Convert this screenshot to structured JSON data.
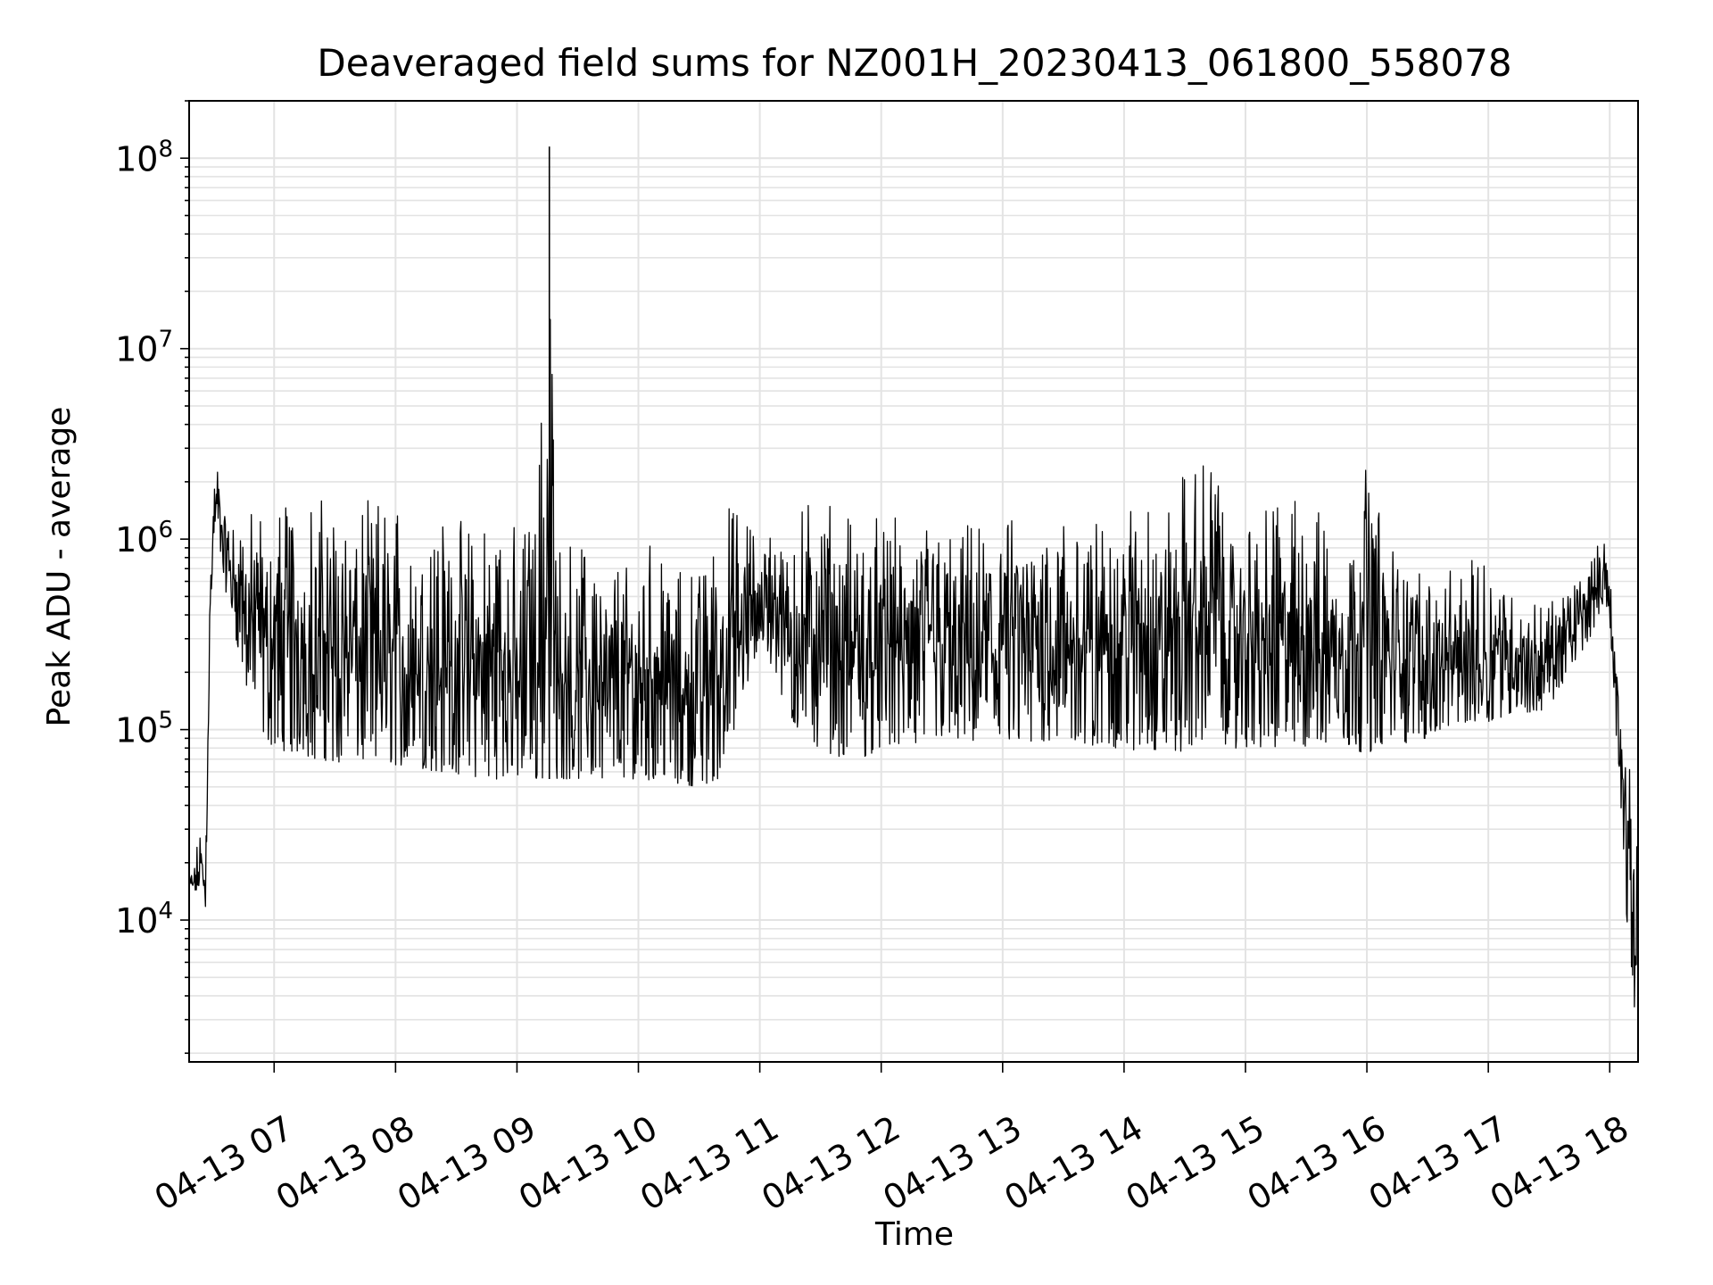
{
  "chart_data": {
    "type": "line",
    "title": "Deaveraged field sums for NZ001H_20230413_061800_558078",
    "xlabel": "Time",
    "ylabel": "Peak ADU - average",
    "yscale": "log",
    "ylim": [
      1800,
      200000000
    ],
    "xlim": [
      "2023-04-13 06:18",
      "2023-04-13 18:14"
    ],
    "grid": true,
    "line_color": "#000000",
    "grid_color": "#e3e3e3",
    "x_ticks": [
      "04-13 07",
      "04-13 08",
      "04-13 09",
      "04-13 10",
      "04-13 11",
      "04-13 12",
      "04-13 13",
      "04-13 14",
      "04-13 15",
      "04-13 16",
      "04-13 17",
      "04-13 18"
    ],
    "y_ticks": [
      "10^4",
      "10^5",
      "10^6",
      "10^7",
      "10^8"
    ],
    "series": [
      {
        "x": [
          "2023-04-13 06:18",
          "2023-04-13 06:21",
          "2023-04-13 06:24",
          "2023-04-13 06:26",
          "2023-04-13 06:28",
          "2023-04-13 06:30",
          "2023-04-13 06:32",
          "2023-04-13 06:35",
          "2023-04-13 06:40",
          "2023-04-13 06:45",
          "2023-04-13 06:50",
          "2023-04-13 06:55",
          "2023-04-13 07:00",
          "2023-04-13 07:10",
          "2023-04-13 07:20",
          "2023-04-13 07:30",
          "2023-04-13 07:40",
          "2023-04-13 07:50",
          "2023-04-13 08:00",
          "2023-04-13 08:10",
          "2023-04-13 08:20",
          "2023-04-13 08:30",
          "2023-04-13 08:40",
          "2023-04-13 08:50",
          "2023-04-13 09:00",
          "2023-04-13 09:10",
          "2023-04-13 09:16",
          "2023-04-13 09:20",
          "2023-04-13 09:30",
          "2023-04-13 09:40",
          "2023-04-13 09:50",
          "2023-04-13 10:00",
          "2023-04-13 10:10",
          "2023-04-13 10:20",
          "2023-04-13 10:30",
          "2023-04-13 10:40",
          "2023-04-13 10:50",
          "2023-04-13 11:00",
          "2023-04-13 11:10",
          "2023-04-13 11:20",
          "2023-04-13 11:30",
          "2023-04-13 11:40",
          "2023-04-13 11:50",
          "2023-04-13 12:00",
          "2023-04-13 12:10",
          "2023-04-13 12:20",
          "2023-04-13 12:30",
          "2023-04-13 12:40",
          "2023-04-13 12:50",
          "2023-04-13 13:00",
          "2023-04-13 13:10",
          "2023-04-13 13:20",
          "2023-04-13 13:30",
          "2023-04-13 13:40",
          "2023-04-13 13:50",
          "2023-04-13 14:00",
          "2023-04-13 14:10",
          "2023-04-13 14:20",
          "2023-04-13 14:30",
          "2023-04-13 14:40",
          "2023-04-13 14:45",
          "2023-04-13 14:50",
          "2023-04-13 15:00",
          "2023-04-13 15:10",
          "2023-04-13 15:20",
          "2023-04-13 15:30",
          "2023-04-13 15:40",
          "2023-04-13 15:50",
          "2023-04-13 16:00",
          "2023-04-13 16:10",
          "2023-04-13 16:20",
          "2023-04-13 16:30",
          "2023-04-13 16:40",
          "2023-04-13 16:50",
          "2023-04-13 17:00",
          "2023-04-13 17:10",
          "2023-04-13 17:20",
          "2023-04-13 17:30",
          "2023-04-13 17:40",
          "2023-04-13 17:50",
          "2023-04-13 17:58",
          "2023-04-13 18:02",
          "2023-04-13 18:06",
          "2023-04-13 18:09",
          "2023-04-13 18:12",
          "2023-04-13 18:14"
        ],
        "y_low": [
          12000,
          13000,
          15000,
          9500,
          200000,
          900000,
          1100000,
          600000,
          350000,
          180000,
          120000,
          90000,
          80000,
          75000,
          70000,
          68000,
          66000,
          65000,
          65000,
          63000,
          60000,
          58000,
          56000,
          55000,
          54000,
          54000,
          55000,
          55000,
          55000,
          56000,
          55000,
          55000,
          54000,
          52000,
          50000,
          55000,
          120000,
          300000,
          150000,
          90000,
          80000,
          70000,
          70000,
          80000,
          80000,
          80000,
          90000,
          85000,
          80000,
          85000,
          80000,
          85000,
          90000,
          85000,
          80000,
          80000,
          75000,
          80000,
          75000,
          90000,
          200000,
          80000,
          80000,
          80000,
          80000,
          80000,
          80000,
          80000,
          75000,
          80000,
          85000,
          90000,
          100000,
          110000,
          110000,
          120000,
          120000,
          130000,
          200000,
          300000,
          500000,
          150000,
          30000,
          8000,
          3000,
          10000
        ],
        "y_high": [
          18000,
          22000,
          32000,
          22000,
          600000,
          1800000,
          2500000,
          1700000,
          1200000,
          1400000,
          1400000,
          1500000,
          1600000,
          1800000,
          1600000,
          1700000,
          1700000,
          1600000,
          1500000,
          1500000,
          1400000,
          1300000,
          1200000,
          1200000,
          1200000,
          1300000,
          115000000,
          1000000,
          1000000,
          900000,
          800000,
          800000,
          1200000,
          700000,
          700000,
          1500000,
          1500000,
          1000000,
          1400000,
          1500000,
          2300000,
          1300000,
          1400000,
          1300000,
          1300000,
          1200000,
          1300000,
          1200000,
          1200000,
          1300000,
          1300000,
          1500000,
          1400000,
          1400000,
          1200000,
          1500000,
          2200000,
          1300000,
          2400000,
          2500000,
          3200000,
          1200000,
          1400000,
          1400000,
          2000000,
          1500000,
          1400000,
          1200000,
          2900000,
          1000000,
          900000,
          800000,
          700000,
          700000,
          1200000,
          600000,
          500000,
          500000,
          600000,
          800000,
          1100000,
          400000,
          150000,
          80000,
          40000,
          20000
        ]
      }
    ]
  }
}
